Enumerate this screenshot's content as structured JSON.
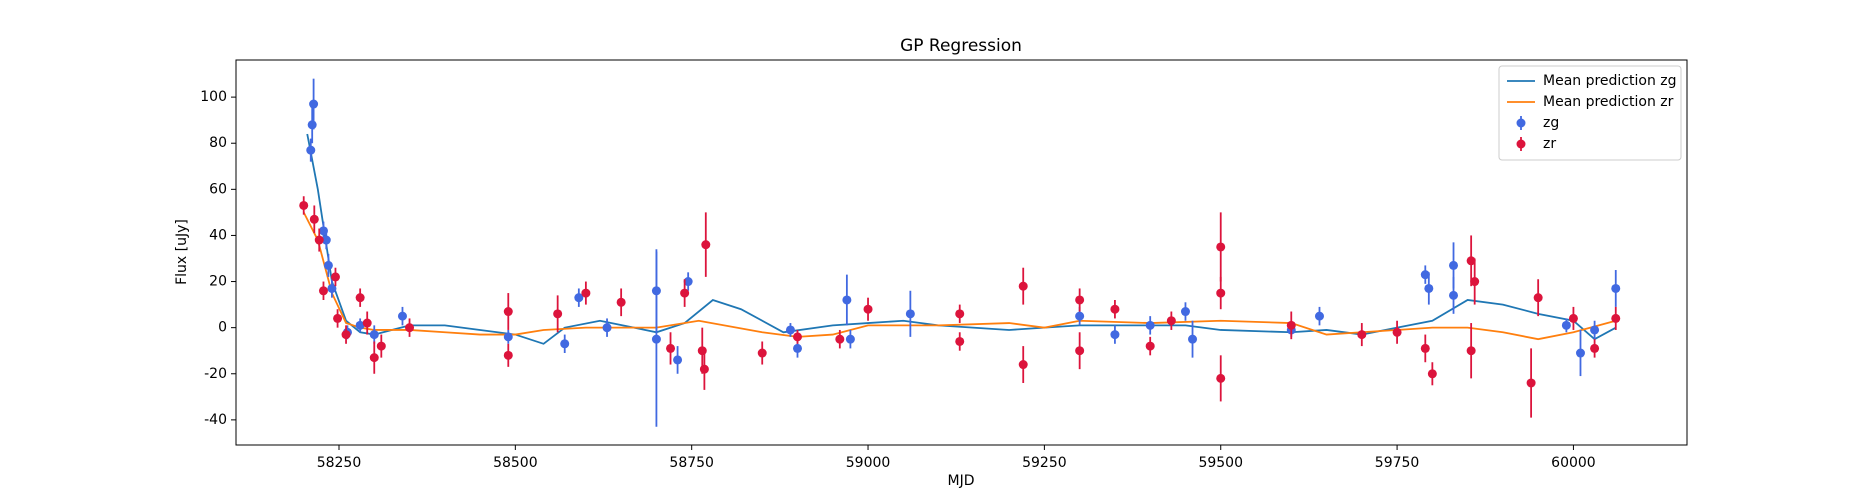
{
  "chart_data": {
    "type": "scatter",
    "title": "GP Regression",
    "x_label": "MJD",
    "y_label": "Flux [uJy]",
    "xlim": [
      58104,
      60161
    ],
    "ylim": [
      -50.9,
      116.1
    ],
    "xticks": [
      58250,
      58500,
      58750,
      59000,
      59250,
      59500,
      59750,
      60000
    ],
    "yticks": [
      -40,
      -20,
      0,
      20,
      40,
      60,
      80,
      100
    ],
    "legend": "upper right",
    "series": [
      {
        "name": "Mean prediction zg",
        "style": "line",
        "color": "#1f77b4",
        "x": [
          58205,
          58220,
          58240,
          58260,
          58280,
          58300,
          58350,
          58400,
          58450,
          58500,
          58540,
          58570,
          58620,
          58700,
          58740,
          58780,
          58820,
          58880,
          58950,
          59000,
          59050,
          59100,
          59200,
          59250,
          59300,
          59400,
          59450,
          59500,
          59600,
          59650,
          59700,
          59750,
          59800,
          59850,
          59900,
          59950,
          60000,
          60030,
          60060
        ],
        "values": [
          84,
          60,
          20,
          3,
          -2,
          -3,
          1,
          1,
          -1,
          -3,
          -7,
          0,
          3,
          -2,
          2,
          12,
          8,
          -2,
          1,
          2,
          3,
          1,
          -1,
          0,
          1,
          1,
          1,
          -1,
          -2,
          -1,
          -3,
          0,
          3,
          12,
          10,
          6,
          3,
          -5,
          0
        ]
      },
      {
        "name": "Mean prediction zr",
        "style": "line",
        "color": "#ff7f0e",
        "x": [
          58200,
          58220,
          58240,
          58260,
          58280,
          58300,
          58350,
          58400,
          58450,
          58500,
          58540,
          58600,
          58700,
          58760,
          58850,
          58900,
          58950,
          59000,
          59100,
          59200,
          59250,
          59300,
          59400,
          59500,
          59600,
          59650,
          59700,
          59800,
          59850,
          59900,
          59950,
          60000,
          60060
        ],
        "values": [
          50,
          38,
          15,
          2,
          0,
          -1,
          -1,
          -2,
          -3,
          -3,
          -1,
          0,
          0,
          3,
          -2,
          -4,
          -3,
          1,
          1,
          2,
          0,
          3,
          2,
          3,
          2,
          -3,
          -2,
          0,
          0,
          -2,
          -5,
          -2,
          3
        ]
      },
      {
        "name": "zg",
        "style": "errorbar",
        "color": "#4169e1",
        "x": [
          58210,
          58212,
          58214,
          58228,
          58232,
          58235,
          58240,
          58262,
          58280,
          58300,
          58340,
          58490,
          58570,
          58590,
          58630,
          58700,
          58700,
          58730,
          58745,
          58890,
          58900,
          58970,
          58975,
          59060,
          59300,
          59350,
          59400,
          59450,
          59460,
          59600,
          59640,
          59790,
          59795,
          59830,
          59830,
          59990,
          60010,
          60060,
          60030
        ],
        "values": [
          77,
          88,
          97,
          42,
          38,
          27,
          17,
          -2,
          1,
          -3,
          5,
          -4,
          -7,
          13,
          0,
          16,
          -5,
          -14,
          20,
          -1,
          -9,
          12,
          -5,
          6,
          5,
          -3,
          1,
          7,
          -5,
          -1,
          5,
          23,
          17,
          27,
          14,
          1,
          -11,
          17,
          -1
        ],
        "errors": [
          5,
          8,
          11,
          4,
          4,
          5,
          4,
          3,
          3,
          4,
          4,
          3,
          4,
          4,
          4,
          18,
          38,
          6,
          4,
          3,
          4,
          11,
          4,
          10,
          4,
          4,
          4,
          4,
          8,
          3,
          4,
          4,
          7,
          10,
          8,
          3,
          10,
          8,
          4
        ]
      },
      {
        "name": "zr",
        "style": "errorbar",
        "color": "#dc143c",
        "x": [
          58200,
          58215,
          58222,
          58228,
          58245,
          58248,
          58260,
          58280,
          58290,
          58300,
          58310,
          58350,
          58490,
          58490,
          58560,
          58600,
          58650,
          58720,
          58740,
          58765,
          58768,
          58770,
          58850,
          58900,
          58960,
          59000,
          59130,
          59130,
          59220,
          59220,
          59300,
          59300,
          59350,
          59400,
          59430,
          59500,
          59500,
          59500,
          59600,
          59700,
          59750,
          59790,
          59800,
          59855,
          59855,
          59860,
          59940,
          59950,
          60000,
          60030,
          60060
        ],
        "values": [
          53,
          47,
          38,
          16,
          22,
          4,
          -3,
          13,
          2,
          -13,
          -8,
          0,
          7,
          -12,
          6,
          15,
          11,
          -9,
          15,
          -10,
          -18,
          36,
          -11,
          -4,
          -5,
          8,
          6,
          -6,
          18,
          -16,
          12,
          -10,
          8,
          -8,
          3,
          35,
          -22,
          15,
          1,
          -3,
          -2,
          -9,
          -20,
          29,
          -10,
          20,
          -24,
          13,
          4,
          -9,
          4
        ],
        "errors": [
          4,
          6,
          5,
          4,
          4,
          4,
          4,
          4,
          5,
          7,
          5,
          4,
          8,
          5,
          8,
          5,
          6,
          7,
          6,
          10,
          9,
          14,
          5,
          3,
          4,
          5,
          4,
          4,
          8,
          8,
          5,
          8,
          4,
          4,
          4,
          15,
          10,
          7,
          6,
          5,
          5,
          6,
          5,
          11,
          12,
          10,
          15,
          8,
          5,
          4,
          5
        ]
      }
    ]
  }
}
